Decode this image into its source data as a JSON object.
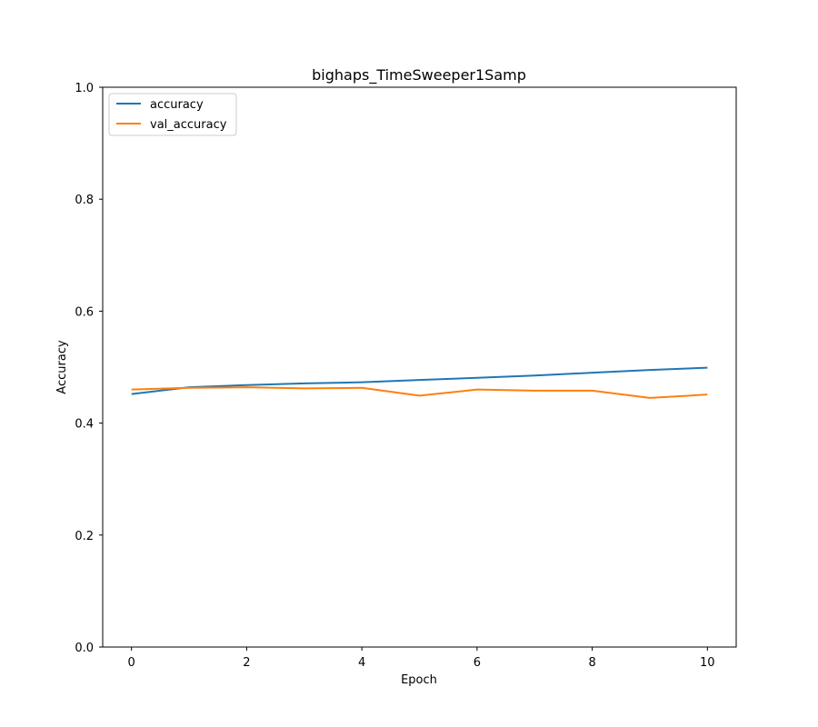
{
  "chart_data": {
    "type": "line",
    "title": "bighaps_TimeSweeper1Samp",
    "xlabel": "Epoch",
    "ylabel": "Accuracy",
    "xlim": [
      -0.5,
      10.5
    ],
    "ylim": [
      0.0,
      1.0
    ],
    "xticks": [
      0,
      2,
      4,
      6,
      8,
      10
    ],
    "yticks": [
      0.0,
      0.2,
      0.4,
      0.6,
      0.8,
      1.0
    ],
    "xtick_labels": [
      "0",
      "2",
      "4",
      "6",
      "8",
      "10"
    ],
    "ytick_labels": [
      "0.0",
      "0.2",
      "0.4",
      "0.6",
      "0.8",
      "1.0"
    ],
    "grid": false,
    "legend_position": "top-left",
    "x": [
      0,
      1,
      2,
      3,
      4,
      5,
      6,
      7,
      8,
      9,
      10
    ],
    "series": [
      {
        "name": "accuracy",
        "color": "#1f77b4",
        "values": [
          0.452,
          0.464,
          0.468,
          0.471,
          0.473,
          0.477,
          0.481,
          0.485,
          0.49,
          0.495,
          0.499
        ]
      },
      {
        "name": "val_accuracy",
        "color": "#ff7f0e",
        "values": [
          0.46,
          0.463,
          0.464,
          0.462,
          0.463,
          0.449,
          0.46,
          0.458,
          0.458,
          0.445,
          0.451
        ]
      }
    ]
  }
}
